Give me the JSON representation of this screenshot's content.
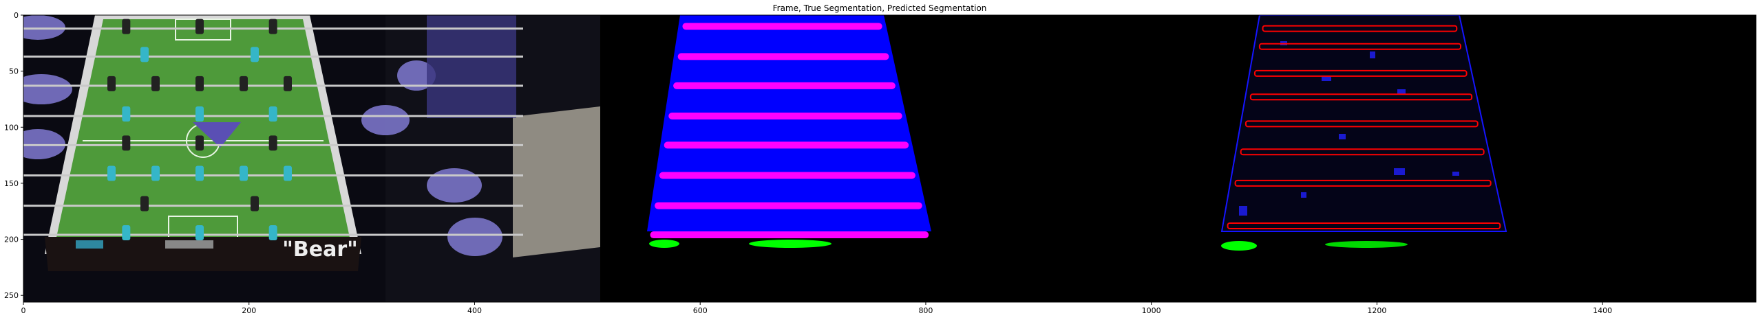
{
  "chart_data": {
    "type": "image",
    "title": "Frame, True Segmentation, Predicted Segmentation",
    "xlabel": "",
    "ylabel": "",
    "xlim": [
      0,
      1536
    ],
    "ylim": [
      256,
      0
    ],
    "xticks": [
      0,
      200,
      400,
      600,
      800,
      1000,
      1200,
      1400
    ],
    "yticks": [
      0,
      50,
      100,
      150,
      200,
      250
    ],
    "panels": [
      {
        "name": "Frame",
        "x_range": [
          0,
          512
        ]
      },
      {
        "name": "True Segmentation",
        "x_range": [
          512,
          1024
        ]
      },
      {
        "name": "Predicted Segmentation",
        "x_range": [
          1024,
          1536
        ]
      }
    ],
    "frame_logo_text": "\"Bear\"",
    "colors": {
      "table_surface": "#0000ff",
      "player_rods": "#ff00ff",
      "goals": "#00ff00",
      "predicted_rods": "#ff0000",
      "field_green": "#4e9a3a",
      "background": "#000000"
    },
    "true_rod_rows": [
      10,
      37,
      63,
      90,
      116,
      143,
      170,
      196
    ],
    "pred_rod_rows": [
      12,
      28,
      52,
      73,
      97,
      122,
      150,
      188
    ]
  }
}
